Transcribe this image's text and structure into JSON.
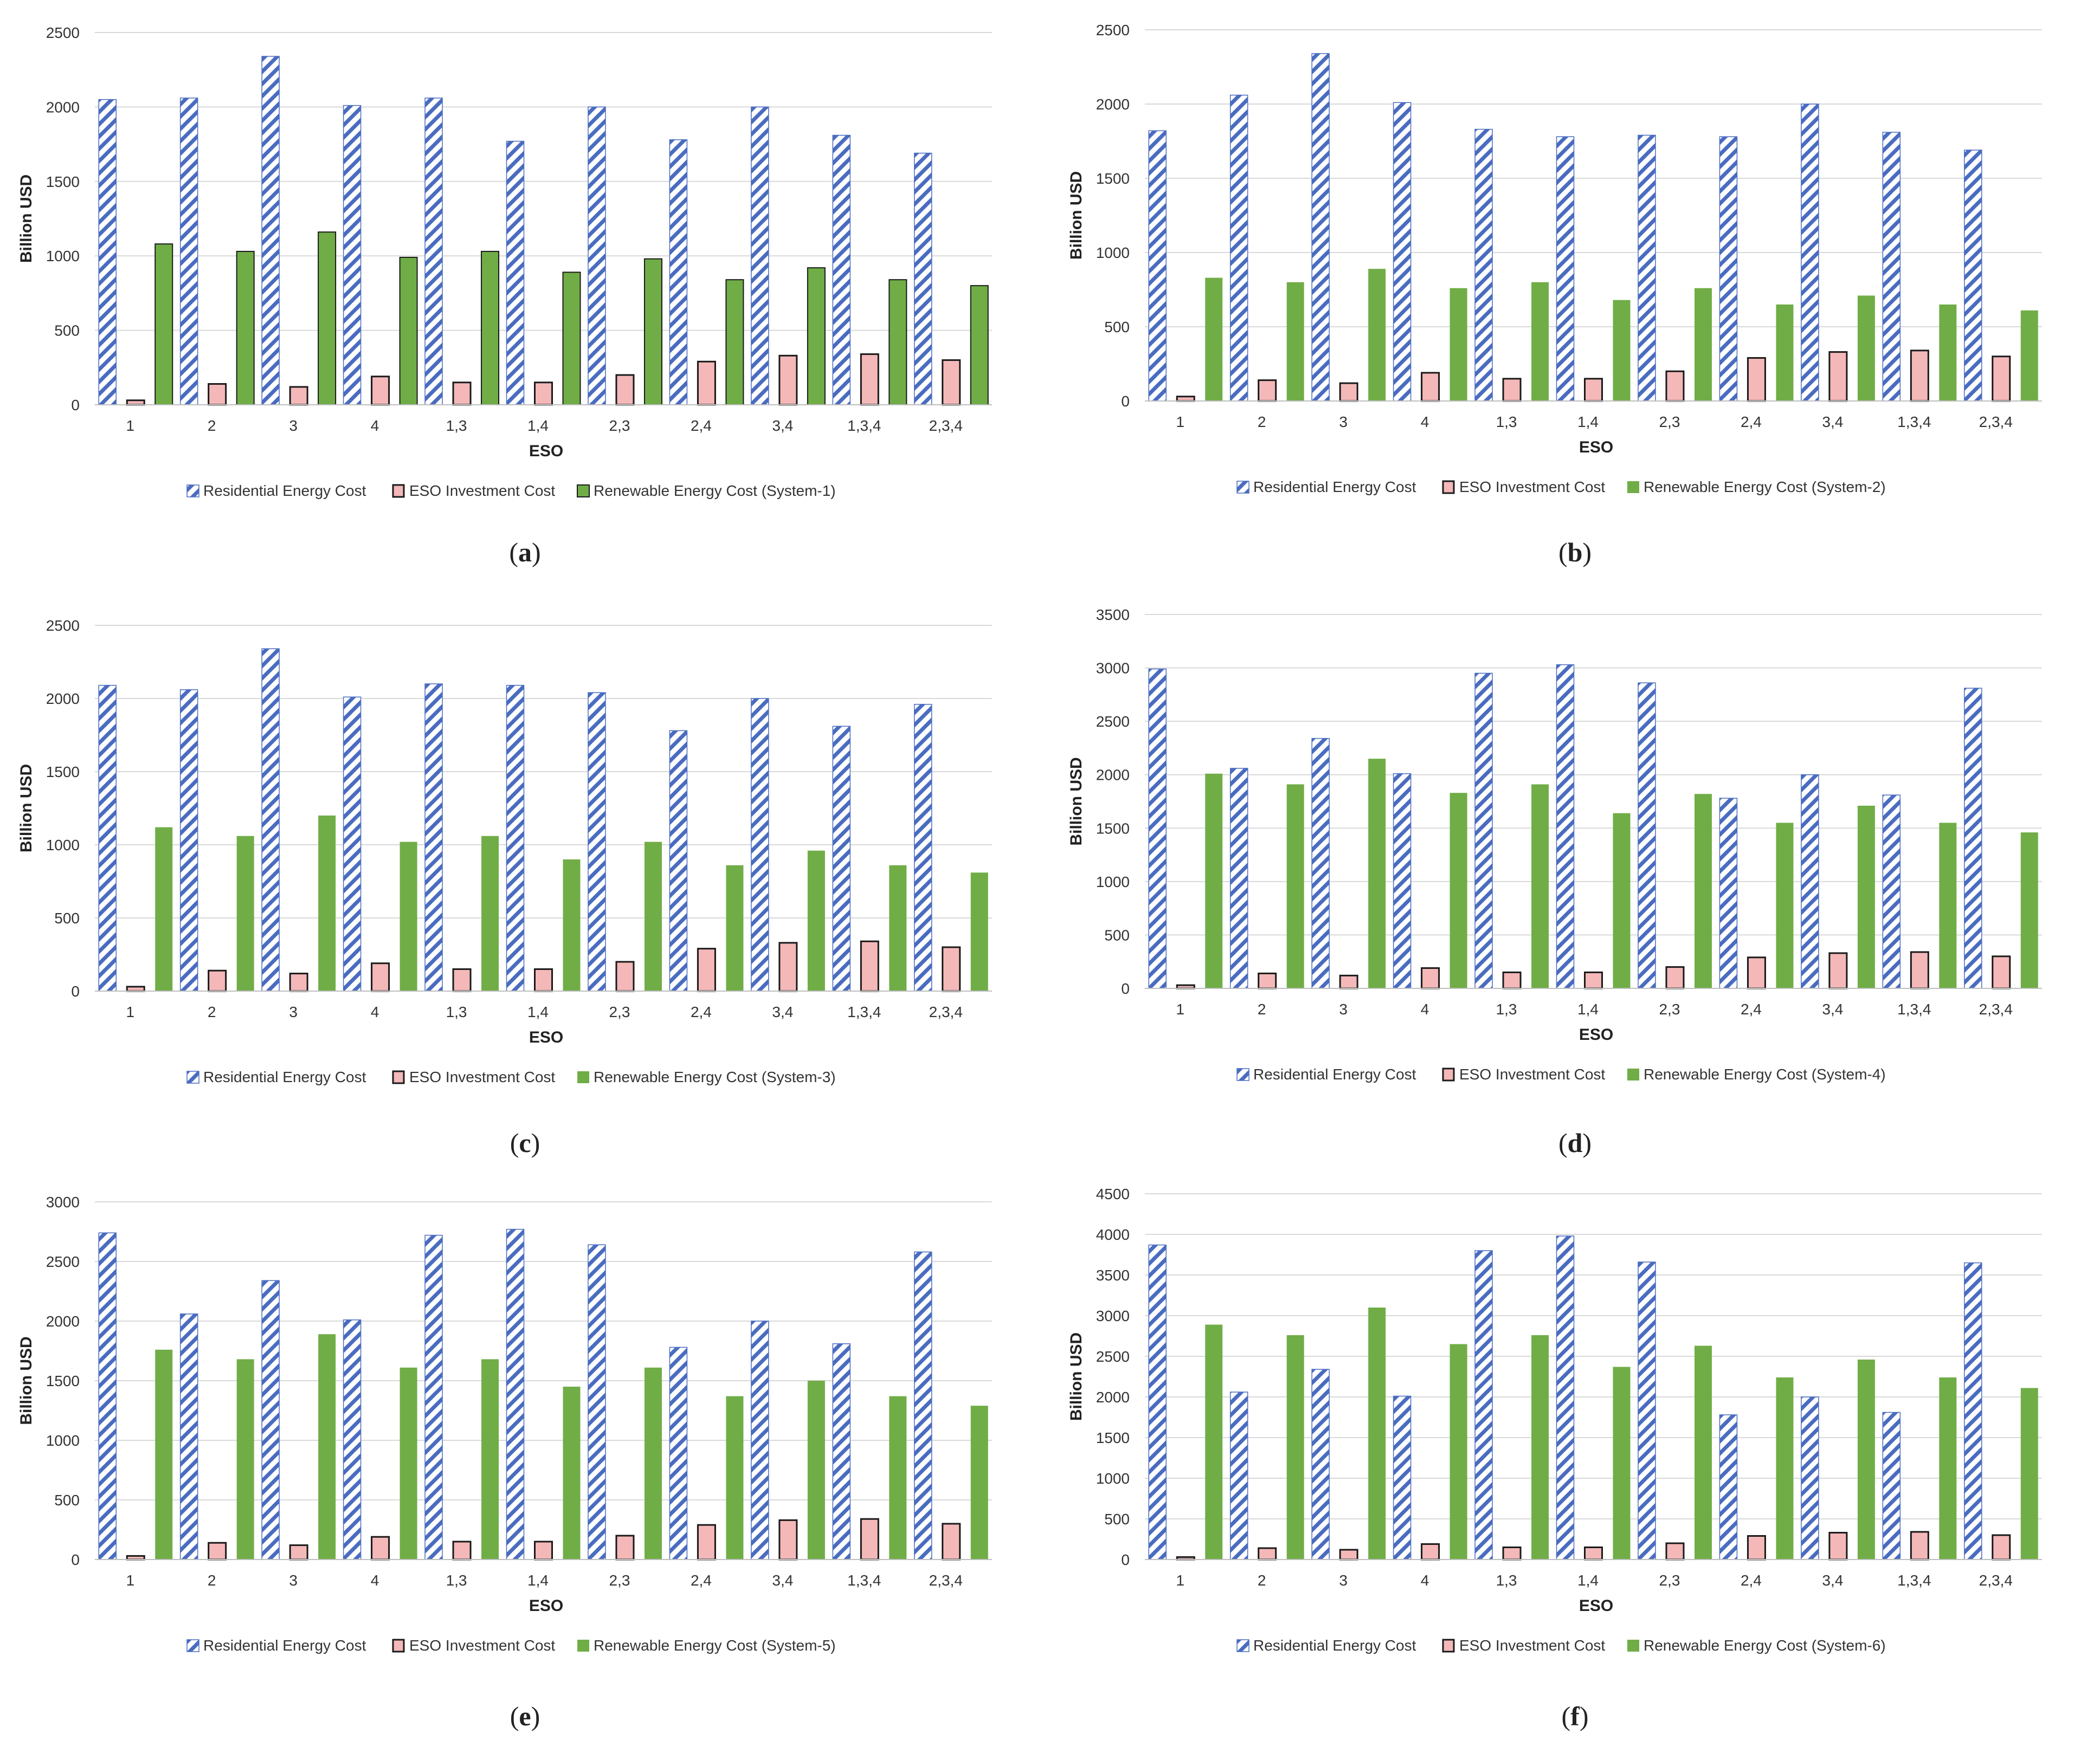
{
  "colors": {
    "residential_stroke": "#4a6cc0",
    "eso_fill": "#f4b8b8",
    "eso_stroke": "#1a1a1a",
    "renewable_fill": "#70ad47",
    "grid": "#d9d9d9",
    "axis_text": "#333333"
  },
  "chart_data": [
    {
      "type": "bar",
      "panel": "a",
      "categories": [
        "1",
        "2",
        "3",
        "4",
        "1,3",
        "1,4",
        "2,3",
        "2,4",
        "3,4",
        "1,3,4",
        "2,3,4"
      ],
      "series": [
        {
          "name": "Residential Energy Cost",
          "values": [
            2050,
            2060,
            2340,
            2010,
            2060,
            1770,
            2000,
            1780,
            2000,
            1810,
            1690
          ]
        },
        {
          "name": "ESO Investment Cost",
          "values": [
            30,
            140,
            120,
            190,
            150,
            150,
            200,
            290,
            330,
            340,
            300
          ]
        },
        {
          "name": "Renewable Energy Cost (System-1)",
          "values": [
            1080,
            1030,
            1160,
            990,
            1030,
            890,
            980,
            840,
            920,
            840,
            800
          ]
        }
      ],
      "ylabel": "Billion USD",
      "xlabel": "ESO",
      "ylim": [
        0,
        2500
      ],
      "yticks": [
        "0",
        "500",
        "1000",
        "1500",
        "2000",
        "2500"
      ],
      "caption": "a",
      "renewable_outlined": true
    },
    {
      "type": "bar",
      "panel": "b",
      "categories": [
        "1",
        "2",
        "3",
        "4",
        "1,3",
        "1,4",
        "2,3",
        "2,4",
        "3,4",
        "1,3,4",
        "2,3,4"
      ],
      "series": [
        {
          "name": "Residential Energy Cost",
          "values": [
            1820,
            2060,
            2340,
            2010,
            1830,
            1780,
            1790,
            1780,
            2000,
            1810,
            1690
          ]
        },
        {
          "name": "ESO Investment Cost",
          "values": [
            30,
            140,
            120,
            190,
            150,
            150,
            200,
            290,
            330,
            340,
            300
          ]
        },
        {
          "name": "Renewable Energy Cost (System-2)",
          "values": [
            830,
            800,
            890,
            760,
            800,
            680,
            760,
            650,
            710,
            650,
            610
          ]
        }
      ],
      "ylabel": "Billion USD",
      "xlabel": "ESO",
      "ylim": [
        0,
        2500
      ],
      "yticks": [
        "0",
        "500",
        "1000",
        "1500",
        "2000",
        "2500"
      ],
      "caption": "b",
      "renewable_outlined": false
    },
    {
      "type": "bar",
      "panel": "c",
      "categories": [
        "1",
        "2",
        "3",
        "4",
        "1,3",
        "1,4",
        "2,3",
        "2,4",
        "3,4",
        "1,3,4",
        "2,3,4"
      ],
      "series": [
        {
          "name": "Residential Energy Cost",
          "values": [
            2090,
            2060,
            2340,
            2010,
            2100,
            2090,
            2040,
            1780,
            2000,
            1810,
            1960
          ]
        },
        {
          "name": "ESO Investment Cost",
          "values": [
            30,
            140,
            120,
            190,
            150,
            150,
            200,
            290,
            330,
            340,
            300
          ]
        },
        {
          "name": "Renewable Energy Cost (System-3)",
          "values": [
            1120,
            1060,
            1200,
            1020,
            1060,
            900,
            1020,
            860,
            960,
            860,
            810
          ]
        }
      ],
      "ylabel": "Billion USD",
      "xlabel": "ESO",
      "ylim": [
        0,
        2500
      ],
      "yticks": [
        "0",
        "500",
        "1000",
        "1500",
        "2000",
        "2500"
      ],
      "caption": "c",
      "renewable_outlined": false
    },
    {
      "type": "bar",
      "panel": "d",
      "categories": [
        "1",
        "2",
        "3",
        "4",
        "1,3",
        "1,4",
        "2,3",
        "2,4",
        "3,4",
        "1,3,4",
        "2,3,4"
      ],
      "series": [
        {
          "name": "Residential Energy Cost",
          "values": [
            2990,
            2060,
            2340,
            2010,
            2950,
            3030,
            2860,
            1780,
            2000,
            1810,
            2810
          ]
        },
        {
          "name": "ESO Investment Cost",
          "values": [
            30,
            140,
            120,
            190,
            150,
            150,
            200,
            290,
            330,
            340,
            300
          ]
        },
        {
          "name": "Renewable Energy Cost (System-4)",
          "values": [
            2010,
            1910,
            2150,
            1830,
            1910,
            1640,
            1820,
            1550,
            1710,
            1550,
            1460
          ]
        }
      ],
      "ylabel": "Billion USD",
      "xlabel": "ESO",
      "ylim": [
        0,
        3500
      ],
      "yticks": [
        "0",
        "500",
        "1000",
        "1500",
        "2000",
        "2500",
        "3000",
        "3500"
      ],
      "caption": "d",
      "renewable_outlined": false
    },
    {
      "type": "bar",
      "panel": "e",
      "categories": [
        "1",
        "2",
        "3",
        "4",
        "1,3",
        "1,4",
        "2,3",
        "2,4",
        "3,4",
        "1,3,4",
        "2,3,4"
      ],
      "series": [
        {
          "name": "Residential Energy Cost",
          "values": [
            2740,
            2060,
            2340,
            2010,
            2720,
            2770,
            2640,
            1780,
            2000,
            1810,
            2580
          ]
        },
        {
          "name": "ESO Investment Cost",
          "values": [
            30,
            140,
            120,
            190,
            150,
            150,
            200,
            290,
            330,
            340,
            300
          ]
        },
        {
          "name": "Renewable Energy Cost (System-5)",
          "values": [
            1760,
            1680,
            1890,
            1610,
            1680,
            1450,
            1610,
            1370,
            1500,
            1370,
            1290
          ]
        }
      ],
      "ylabel": "Billion USD",
      "xlabel": "ESO",
      "ylim": [
        0,
        3000
      ],
      "yticks": [
        "0",
        "500",
        "1000",
        "1500",
        "2000",
        "2500",
        "3000"
      ],
      "caption": "e",
      "renewable_outlined": false
    },
    {
      "type": "bar",
      "panel": "f",
      "categories": [
        "1",
        "2",
        "3",
        "4",
        "1,3",
        "1,4",
        "2,3",
        "2,4",
        "3,4",
        "1,3,4",
        "2,3,4"
      ],
      "series": [
        {
          "name": "Residential Energy Cost",
          "values": [
            3870,
            2060,
            2340,
            2010,
            3800,
            3980,
            3660,
            1780,
            2000,
            1810,
            3650
          ]
        },
        {
          "name": "ESO Investment Cost",
          "values": [
            30,
            140,
            120,
            190,
            150,
            150,
            200,
            290,
            330,
            340,
            300
          ]
        },
        {
          "name": "Renewable Energy Cost (System-6)",
          "values": [
            2890,
            2760,
            3100,
            2650,
            2760,
            2370,
            2630,
            2240,
            2460,
            2240,
            2110
          ]
        }
      ],
      "ylabel": "Billion USD",
      "xlabel": "ESO",
      "ylim": [
        0,
        4500
      ],
      "yticks": [
        "0",
        "500",
        "1000",
        "1500",
        "2000",
        "2500",
        "3000",
        "3500",
        "4000",
        "4500"
      ],
      "caption": "f",
      "renewable_outlined": false
    }
  ]
}
